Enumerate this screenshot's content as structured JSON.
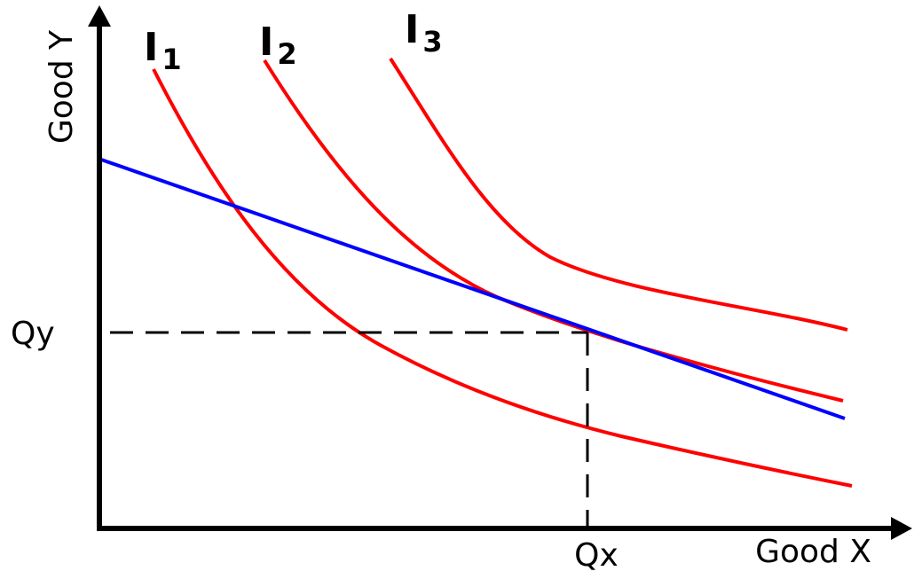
{
  "axes": {
    "x_label": "Good X",
    "y_label": "Good Y",
    "qx_label": "Qx",
    "qy_label": "Qy"
  },
  "curves": [
    {
      "main": "I",
      "sub": "1",
      "color": "#ff0000"
    },
    {
      "main": "I",
      "sub": "2",
      "color": "#ff0000"
    },
    {
      "main": "I",
      "sub": "3",
      "color": "#ff0000"
    }
  ],
  "budget_line": {
    "color": "#0000ff"
  },
  "colors": {
    "axis": "#000000",
    "guide": "#000000"
  }
}
